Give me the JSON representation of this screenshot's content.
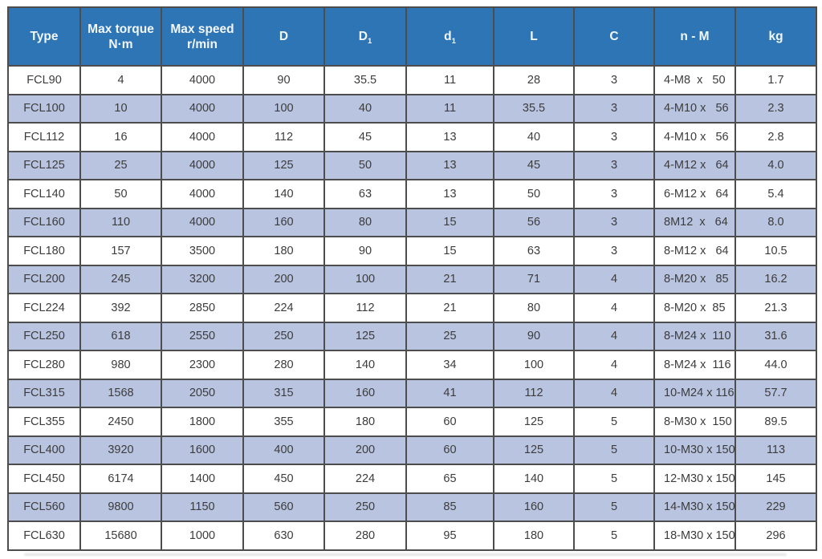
{
  "colors": {
    "header_bg": "#2e75b6",
    "header_text": "#f2f7fd",
    "row_alt_bg": "#b9c4e1",
    "row_bg": "#ffffff",
    "border_color": "#4d4d4d",
    "cell_text": "#3c3c3c"
  },
  "chart_data": {
    "type": "table",
    "title": "FCL coupling specification table",
    "columns": [
      {
        "id": "type",
        "label": "Type"
      },
      {
        "id": "max_torque_nm",
        "label": "Max torque",
        "line2": "N·m"
      },
      {
        "id": "max_speed_rpm",
        "label": "Max speed",
        "line2": "r/min"
      },
      {
        "id": "D",
        "label": "D"
      },
      {
        "id": "D1",
        "label": "D",
        "sub": "1"
      },
      {
        "id": "d1",
        "label": "d",
        "sub": "1"
      },
      {
        "id": "L",
        "label": "L"
      },
      {
        "id": "C",
        "label": "C"
      },
      {
        "id": "n_M",
        "label": "n - M"
      },
      {
        "id": "kg",
        "label": "kg"
      }
    ],
    "rows": [
      [
        "FCL90",
        "4",
        "4000",
        "90",
        "35.5",
        "11",
        "28",
        "3",
        "4-M8  x   50",
        "1.7"
      ],
      [
        "FCL100",
        "10",
        "4000",
        "100",
        "40",
        "11",
        "35.5",
        "3",
        "4-M10 x   56",
        "2.3"
      ],
      [
        "FCL112",
        "16",
        "4000",
        "112",
        "45",
        "13",
        "40",
        "3",
        "4-M10 x   56",
        "2.8"
      ],
      [
        "FCL125",
        "25",
        "4000",
        "125",
        "50",
        "13",
        "45",
        "3",
        "4-M12 x   64",
        "4.0"
      ],
      [
        "FCL140",
        "50",
        "4000",
        "140",
        "63",
        "13",
        "50",
        "3",
        "6-M12 x   64",
        "5.4"
      ],
      [
        "FCL160",
        "110",
        "4000",
        "160",
        "80",
        "15",
        "56",
        "3",
        "8M12  x   64",
        "8.0"
      ],
      [
        "FCL180",
        "157",
        "3500",
        "180",
        "90",
        "15",
        "63",
        "3",
        "8-M12 x   64",
        "10.5"
      ],
      [
        "FCL200",
        "245",
        "3200",
        "200",
        "100",
        "21",
        "71",
        "4",
        "8-M20 x   85",
        "16.2"
      ],
      [
        "FCL224",
        "392",
        "2850",
        "224",
        "112",
        "21",
        "80",
        "4",
        "8-M20 x  85",
        "21.3"
      ],
      [
        "FCL250",
        "618",
        "2550",
        "250",
        "125",
        "25",
        "90",
        "4",
        "8-M24 x  110",
        "31.6"
      ],
      [
        "FCL280",
        "980",
        "2300",
        "280",
        "140",
        "34",
        "100",
        "4",
        "8-M24 x  116",
        "44.0"
      ],
      [
        "FCL315",
        "1568",
        "2050",
        "315",
        "160",
        "41",
        "112",
        "4",
        "10-M24 x 116",
        "57.7"
      ],
      [
        "FCL355",
        "2450",
        "1800",
        "355",
        "180",
        "60",
        "125",
        "5",
        "8-M30 x  150",
        "89.5"
      ],
      [
        "FCL400",
        "3920",
        "1600",
        "400",
        "200",
        "60",
        "125",
        "5",
        "10-M30 x 150",
        "113"
      ],
      [
        "FCL450",
        "6174",
        "1400",
        "450",
        "224",
        "65",
        "140",
        "5",
        "12-M30 x 150",
        "145"
      ],
      [
        "FCL560",
        "9800",
        "1150",
        "560",
        "250",
        "85",
        "160",
        "5",
        "14-M30 x 150",
        "229"
      ],
      [
        "FCL630",
        "15680",
        "1000",
        "630",
        "280",
        "95",
        "180",
        "5",
        "18-M30 x 150",
        "296"
      ]
    ]
  }
}
